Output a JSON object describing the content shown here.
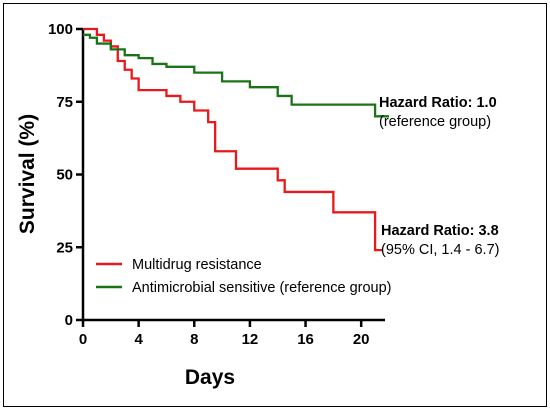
{
  "chart_data": {
    "type": "line",
    "xlabel": "Days",
    "ylabel": "Survival (%)",
    "xlim": [
      0,
      22
    ],
    "ylim": [
      0,
      100
    ],
    "x_ticks": [
      0,
      4,
      8,
      12,
      16,
      20
    ],
    "y_ticks": [
      0,
      25,
      50,
      75,
      100
    ],
    "grid": false,
    "legend_position": "bottom-left",
    "series": [
      {
        "name": "Multidrug resistance",
        "color": "#e8191b",
        "step": true,
        "x": [
          0,
          1,
          1.5,
          2,
          2.5,
          3,
          3.5,
          4,
          6,
          7,
          8,
          9,
          9.5,
          11,
          14,
          14.5,
          18,
          21,
          21.5
        ],
        "y": [
          100,
          98,
          96,
          94,
          89,
          86,
          83,
          79,
          77,
          75,
          72,
          68,
          58,
          52,
          48,
          44,
          37,
          24,
          24
        ]
      },
      {
        "name": "Antimicrobial sensitive (reference group)",
        "color": "#1a7417",
        "step": true,
        "x": [
          0,
          0.5,
          1,
          2,
          3,
          4,
          5,
          6,
          8,
          10,
          12,
          14,
          15,
          21,
          22
        ],
        "y": [
          98,
          97,
          95,
          93,
          91,
          90,
          88,
          87,
          85,
          82,
          80,
          77,
          74,
          70,
          70
        ]
      }
    ],
    "annotations": [
      {
        "title": "Hazard Ratio: 1.0",
        "detail": "(reference group)"
      },
      {
        "title": "Hazard Ratio: 3.8",
        "detail": "(95% CI, 1.4 - 6.7)"
      }
    ]
  }
}
